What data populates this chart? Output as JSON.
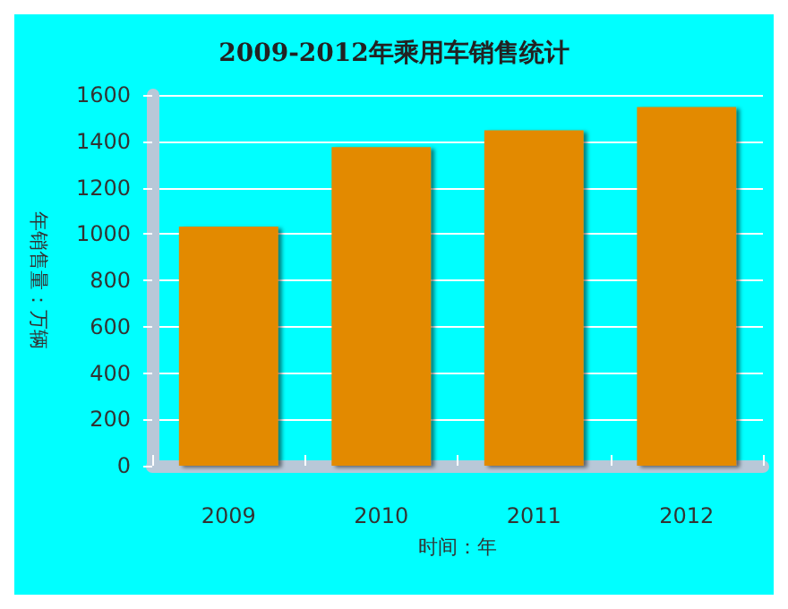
{
  "chart_data": {
    "type": "bar",
    "title": "2009-2012年乘用车销售统计",
    "xlabel": "时间：年",
    "ylabel": "年销售量：万辆",
    "categories": [
      "2009",
      "2010",
      "2011",
      "2012"
    ],
    "values": [
      1032,
      1375,
      1447,
      1548
    ],
    "color": "#e38a00",
    "ylim": [
      0,
      1600
    ],
    "yticks": [
      0,
      200,
      400,
      600,
      800,
      1000,
      1200,
      1400,
      1600
    ],
    "grid": "y"
  }
}
